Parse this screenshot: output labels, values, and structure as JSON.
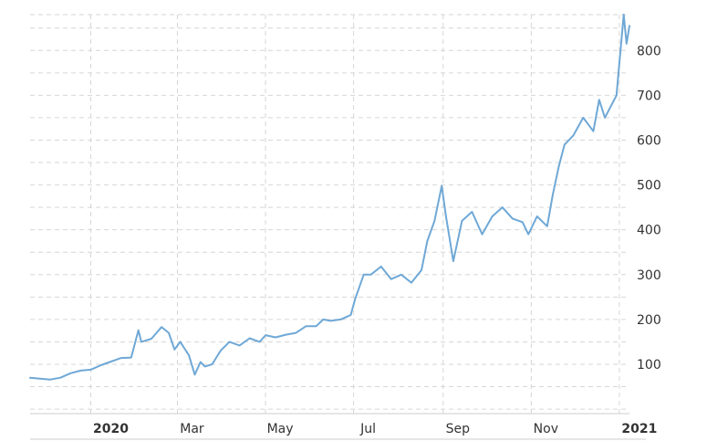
{
  "chart_data": {
    "type": "line",
    "title": "",
    "xlabel": "",
    "ylabel": "",
    "x_range": [
      "2019-11-20",
      "2021-01-08"
    ],
    "ylim": [
      -10,
      880
    ],
    "y_ticks": [
      100,
      200,
      300,
      400,
      500,
      600,
      700,
      800
    ],
    "y_tick_labels": [
      "100",
      "200",
      "300",
      "400",
      "500",
      "600",
      "700",
      "800"
    ],
    "y_axis_side": "right",
    "x_ticks": [
      {
        "date": "2020-01-01",
        "label": "2020",
        "bold": true
      },
      {
        "date": "2020-03-01",
        "label": "Mar",
        "bold": false
      },
      {
        "date": "2020-05-01",
        "label": "May",
        "bold": false
      },
      {
        "date": "2020-07-01",
        "label": "Jul",
        "bold": false
      },
      {
        "date": "2020-09-01",
        "label": "Sep",
        "bold": false
      },
      {
        "date": "2020-11-01",
        "label": "Nov",
        "bold": false
      },
      {
        "date": "2021-01-01",
        "label": "2021",
        "bold": true
      }
    ],
    "grid": true,
    "legend": "none",
    "line_color": "#6fa8d6",
    "series": [
      {
        "x": [
          "2019-11-20",
          "2019-11-27",
          "2019-12-04",
          "2019-12-11",
          "2019-12-18",
          "2019-12-25",
          "2020-01-01",
          "2020-01-08",
          "2020-01-15",
          "2020-01-22",
          "2020-01-29",
          "2020-02-03",
          "2020-02-05",
          "2020-02-12",
          "2020-02-19",
          "2020-02-24",
          "2020-02-28",
          "2020-03-03",
          "2020-03-09",
          "2020-03-13",
          "2020-03-17",
          "2020-03-20",
          "2020-03-25",
          "2020-03-31",
          "2020-04-06",
          "2020-04-13",
          "2020-04-20",
          "2020-04-27",
          "2020-05-01",
          "2020-05-08",
          "2020-05-15",
          "2020-05-22",
          "2020-05-29",
          "2020-06-05",
          "2020-06-10",
          "2020-06-15",
          "2020-06-22",
          "2020-06-29",
          "2020-07-02",
          "2020-07-08",
          "2020-07-13",
          "2020-07-20",
          "2020-07-27",
          "2020-08-03",
          "2020-08-10",
          "2020-08-17",
          "2020-08-21",
          "2020-08-26",
          "2020-08-31",
          "2020-09-03",
          "2020-09-08",
          "2020-09-14",
          "2020-09-21",
          "2020-09-28",
          "2020-10-05",
          "2020-10-12",
          "2020-10-19",
          "2020-10-26",
          "2020-10-30",
          "2020-11-05",
          "2020-11-12",
          "2020-11-16",
          "2020-11-20",
          "2020-11-24",
          "2020-11-30",
          "2020-12-07",
          "2020-12-14",
          "2020-12-18",
          "2020-12-22",
          "2020-12-30",
          "2021-01-04",
          "2021-01-06",
          "2021-01-08"
        ],
        "y": [
          70,
          68,
          66,
          70,
          80,
          86,
          88,
          98,
          106,
          114,
          115,
          176,
          150,
          157,
          183,
          170,
          133,
          150,
          120,
          77,
          105,
          95,
          100,
          131,
          150,
          142,
          158,
          150,
          165,
          160,
          166,
          170,
          185,
          185,
          200,
          197,
          200,
          210,
          245,
          300,
          300,
          318,
          290,
          300,
          282,
          310,
          375,
          420,
          498,
          430,
          330,
          420,
          440,
          390,
          430,
          450,
          425,
          417,
          390,
          430,
          408,
          480,
          540,
          590,
          610,
          650,
          620,
          690,
          650,
          700,
          880,
          815,
          855
        ]
      }
    ]
  }
}
